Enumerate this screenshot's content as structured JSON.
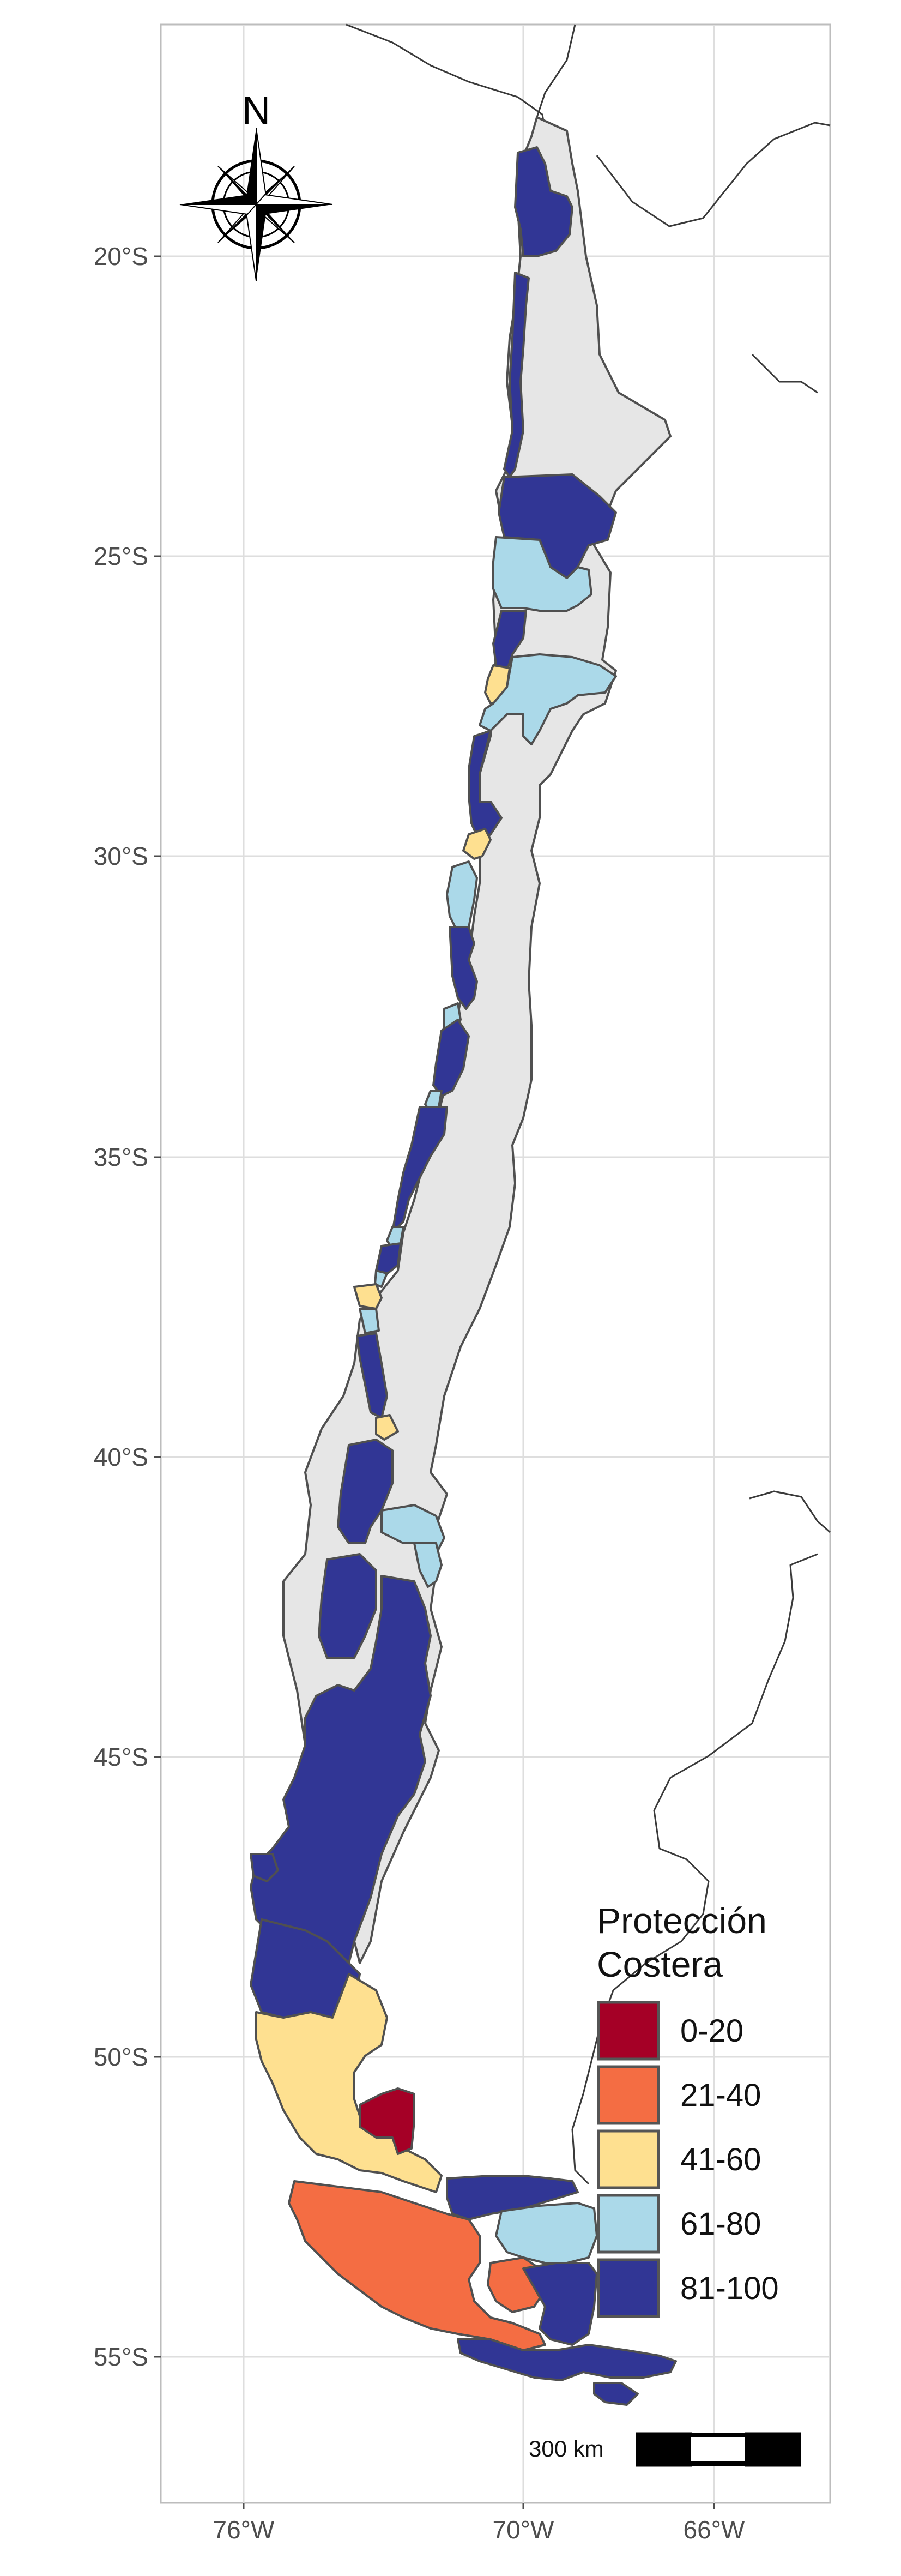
{
  "map": {
    "y_axis_ticks": [
      "20°S",
      "25°S",
      "30°S",
      "35°S",
      "40°S",
      "45°S",
      "50°S",
      "55°S"
    ],
    "x_axis_ticks": [
      "76°W",
      "70°W",
      "66°W"
    ],
    "north_label": "N",
    "scale_bar_label": "300 km",
    "legend": {
      "title_line1": "Protección",
      "title_line2": "Costera",
      "items": [
        {
          "label": "0-20",
          "color": "#a50026"
        },
        {
          "label": "21-40",
          "color": "#f46d43"
        },
        {
          "label": "41-60",
          "color": "#fee090"
        },
        {
          "label": "61-80",
          "color": "#abd9e9"
        },
        {
          "label": "81-100",
          "color": "#313695"
        }
      ]
    },
    "colors": {
      "no_data": "#e6e6e6",
      "grid": "#dedede",
      "panel_border": "#bdbdbd"
    }
  }
}
